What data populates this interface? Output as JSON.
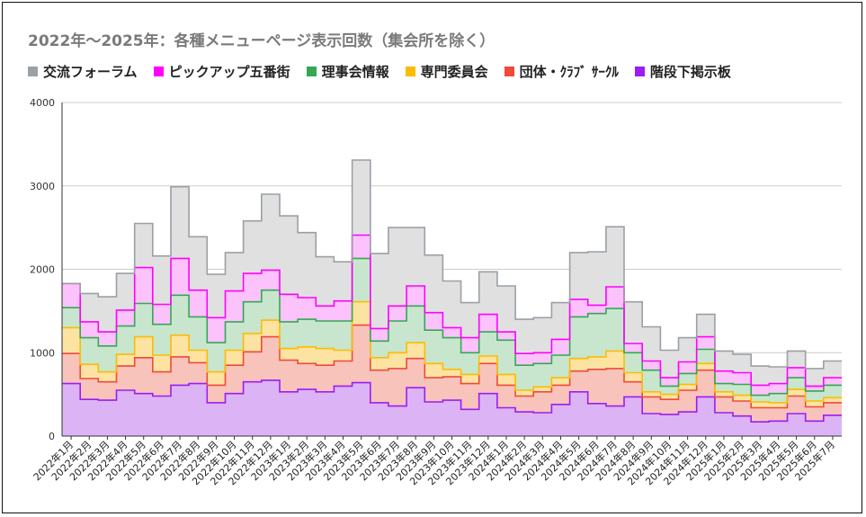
{
  "chart_data": {
    "type": "area",
    "stacked": true,
    "step": true,
    "title": "2022年～2025年：各種メニューページ表示回数（集会所を除く）",
    "xlabel": "",
    "ylabel": "",
    "ylim": [
      0,
      4000
    ],
    "yticks": [
      0,
      1000,
      2000,
      3000,
      4000
    ],
    "grid": true,
    "legend_position": "top",
    "categories": [
      "2022年1月",
      "2022年2月",
      "2022年3月",
      "2022年4月",
      "2022年5月",
      "2022年6月",
      "2022年7月",
      "2022年8月",
      "2022年9月",
      "2022年10月",
      "2022年11月",
      "2022年12月",
      "2023年1月",
      "2023年2月",
      "2023年3月",
      "2023年4月",
      "2023年5月",
      "2023年6月",
      "2023年7月",
      "2023年8月",
      "2023年9月",
      "2023年10月",
      "2023年11月",
      "2023年12月",
      "2024年1月",
      "2024年2月",
      "2024年3月",
      "2024年4月",
      "2024年5月",
      "2024年6月",
      "2024年7月",
      "2024年8月",
      "2024年9月",
      "2024年10月",
      "2024年11月",
      "2024年12月",
      "2025年1月",
      "2025年2月",
      "2025年3月",
      "2025年4月",
      "2025年5月",
      "2025年6月",
      "2025年7月"
    ],
    "series": [
      {
        "name": "階段下掲示板",
        "color": "#9b1cf5",
        "fill": "#dcb4f5",
        "values": [
          630,
          440,
          430,
          550,
          510,
          480,
          610,
          630,
          400,
          510,
          650,
          670,
          530,
          560,
          530,
          600,
          640,
          400,
          360,
          580,
          410,
          430,
          320,
          510,
          340,
          290,
          280,
          380,
          530,
          390,
          360,
          470,
          270,
          260,
          290,
          470,
          280,
          240,
          170,
          180,
          270,
          180,
          250
        ]
      },
      {
        "name": "団体・ｸﾗﾌﾞ ｻｰｸﾙ",
        "color": "#ef4a3a",
        "fill": "#f7c3ba",
        "values": [
          360,
          250,
          220,
          290,
          430,
          290,
          340,
          250,
          210,
          340,
          360,
          520,
          380,
          310,
          320,
          300,
          690,
          390,
          450,
          350,
          290,
          280,
          310,
          360,
          270,
          190,
          250,
          230,
          250,
          410,
          450,
          180,
          200,
          180,
          260,
          320,
          190,
          180,
          170,
          160,
          210,
          170,
          150
        ]
      },
      {
        "name": "専門委員会",
        "color": "#fbbc04",
        "fill": "#fde3a1",
        "values": [
          310,
          170,
          120,
          140,
          250,
          200,
          260,
          150,
          160,
          180,
          220,
          200,
          140,
          200,
          200,
          130,
          280,
          150,
          190,
          190,
          170,
          90,
          110,
          90,
          130,
          70,
          60,
          90,
          150,
          150,
          210,
          110,
          60,
          60,
          70,
          80,
          60,
          70,
          70,
          60,
          80,
          70,
          60
        ]
      },
      {
        "name": "理事会情報",
        "color": "#34a853",
        "fill": "#c8e6cd",
        "values": [
          240,
          320,
          310,
          340,
          400,
          370,
          480,
          400,
          350,
          340,
          380,
          360,
          320,
          330,
          330,
          350,
          520,
          200,
          380,
          440,
          400,
          380,
          260,
          290,
          410,
          300,
          280,
          270,
          500,
          520,
          510,
          240,
          260,
          100,
          130,
          170,
          100,
          130,
          80,
          110,
          140,
          120,
          150
        ]
      },
      {
        "name": "ピックアップ五番街",
        "color": "#ff00ff",
        "fill": "#fcc2fc",
        "values": [
          290,
          190,
          170,
          190,
          430,
          240,
          440,
          320,
          300,
          370,
          340,
          240,
          330,
          260,
          180,
          240,
          280,
          150,
          180,
          240,
          210,
          120,
          180,
          210,
          100,
          140,
          130,
          190,
          210,
          100,
          260,
          110,
          110,
          100,
          140,
          150,
          150,
          140,
          120,
          120,
          120,
          60,
          90
        ]
      },
      {
        "name": "交流フォーラム",
        "color": "#9aa0a6",
        "fill": "#e0e0e0",
        "values": [
          0,
          340,
          420,
          440,
          530,
          580,
          860,
          640,
          520,
          460,
          630,
          910,
          940,
          780,
          590,
          470,
          900,
          900,
          940,
          700,
          690,
          560,
          420,
          510,
          550,
          410,
          420,
          440,
          560,
          640,
          720,
          500,
          410,
          330,
          290,
          270,
          240,
          220,
          230,
          200,
          200,
          210,
          200
        ]
      }
    ]
  }
}
